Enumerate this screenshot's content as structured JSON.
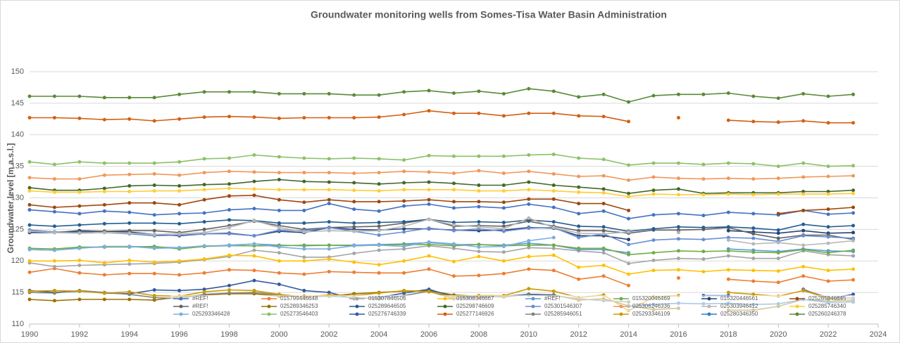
{
  "chart_data": {
    "type": "line",
    "title": "Groundwater monitoring wells from  Somes-Tisa Water Basin Administration",
    "y_label": "Groundwater level [m a.s.l.]",
    "x": [
      1990,
      1991,
      1992,
      1993,
      1994,
      1995,
      1996,
      1997,
      1998,
      1999,
      2000,
      2001,
      2002,
      2003,
      2004,
      2005,
      2006,
      2007,
      2008,
      2009,
      2010,
      2011,
      2012,
      2013,
      2014,
      2015,
      2016,
      2017,
      2018,
      2019,
      2020,
      2021,
      2022,
      2023
    ],
    "xlim": [
      1990,
      2024
    ],
    "xticks": [
      1990,
      1992,
      1994,
      1996,
      1998,
      2000,
      2002,
      2004,
      2006,
      2008,
      2010,
      2012,
      2014,
      2016,
      2018,
      2020,
      2022,
      2024
    ],
    "ylim": [
      110,
      150
    ],
    "yticks": [
      110,
      115,
      120,
      125,
      130,
      135,
      140,
      145,
      150
    ],
    "grid": true,
    "legend": "bottom",
    "series": [
      {
        "name": "#REF!",
        "color": "#4472c4",
        "values": [
          128.1,
          127.8,
          127.5,
          127.9,
          127.7,
          127.3,
          127.5,
          127.6,
          128.1,
          128.3,
          128.0,
          128.0,
          129.1,
          128.2,
          127.9,
          128.7,
          129.0,
          128.4,
          128.6,
          128.4,
          129.0,
          128.5,
          127.5,
          127.9,
          126.7,
          127.3,
          127.5,
          127.2,
          127.7,
          127.5,
          127.3,
          128.0,
          127.4,
          127.6
        ]
      },
      {
        "name": "015799446648",
        "color": "#ed7d31",
        "values": [
          118.2,
          118.8,
          118.1,
          117.8,
          118.0,
          118.0,
          117.8,
          118.1,
          118.6,
          118.5,
          118.1,
          117.9,
          118.3,
          118.2,
          118.1,
          118.1,
          118.7,
          117.6,
          117.7,
          118.0,
          118.7,
          118.5,
          117.1,
          117.6,
          116.1,
          null,
          117.3,
          null,
          117.1,
          116.8,
          116.6,
          117.6,
          116.8,
          117.0
        ]
      },
      {
        "name": "015307846506",
        "color": "#a5a5a5",
        "values": [
          119.7,
          119.1,
          119.3,
          119.4,
          119.5,
          119.6,
          119.8,
          120.2,
          120.7,
          121.7,
          121.3,
          120.6,
          120.6,
          121.2,
          121.7,
          121.9,
          122.4,
          122.0,
          121.5,
          121.4,
          122.1,
          122.0,
          121.6,
          121.3,
          119.6,
          120.1,
          120.4,
          120.3,
          120.8,
          120.4,
          120.4,
          121.6,
          121.0,
          120.8
        ]
      },
      {
        "name": "015308346667",
        "color": "#ffc000",
        "values": [
          120.0,
          120.0,
          120.1,
          119.7,
          120.1,
          119.8,
          120.0,
          120.3,
          120.9,
          120.8,
          120.0,
          120.0,
          120.3,
          119.8,
          119.4,
          120.0,
          120.8,
          119.9,
          120.7,
          120.0,
          120.7,
          120.9,
          119.0,
          119.3,
          117.9,
          118.5,
          118.6,
          118.3,
          118.6,
          118.5,
          118.4,
          119.1,
          118.5,
          118.7
        ]
      },
      {
        "name": "#REF!",
        "color": "#5b9bd5",
        "values": [
          121.8,
          121.7,
          122.1,
          122.2,
          122.3,
          122.2,
          122.1,
          122.3,
          122.5,
          122.7,
          122.5,
          122.4,
          122.5,
          122.5,
          122.6,
          122.7,
          122.9,
          122.6,
          122.6,
          122.5,
          122.8,
          122.5,
          121.8,
          121.8,
          121.3,
          null,
          null,
          null,
          121.9,
          121.7,
          121.5,
          121.9,
          121.6,
          121.5
        ]
      },
      {
        "name": "015320046469",
        "color": "#70ad47",
        "values": [
          122.0,
          121.9,
          122.2,
          122.2,
          122.2,
          122.3,
          121.9,
          122.3,
          122.4,
          122.4,
          122.4,
          122.5,
          122.5,
          122.4,
          122.5,
          122.6,
          122.6,
          122.4,
          122.6,
          122.4,
          122.5,
          122.5,
          122.0,
          122.0,
          121.0,
          121.3,
          121.6,
          121.5,
          121.6,
          121.4,
          121.3,
          121.8,
          121.3,
          121.7
        ]
      },
      {
        "name": "015320446561",
        "color": "#264478",
        "values": [
          124.5,
          124.5,
          124.8,
          124.7,
          124.6,
          124.2,
          124.0,
          124.3,
          124.4,
          124.0,
          124.7,
          124.5,
          125.3,
          125.0,
          124.9,
          125.1,
          125.1,
          124.9,
          124.8,
          124.9,
          125.3,
          125.2,
          124.0,
          124.0,
          123.4,
          null,
          124.6,
          null,
          124.8,
          124.6,
          124.4,
          124.8,
          124.4,
          124.5
        ]
      },
      {
        "name": "025285846645",
        "color": "#9e480e",
        "values": [
          128.9,
          128.5,
          128.7,
          128.9,
          129.2,
          129.2,
          128.9,
          129.7,
          130.3,
          130.4,
          129.7,
          129.3,
          129.7,
          129.4,
          129.4,
          129.5,
          129.7,
          129.4,
          129.4,
          129.3,
          129.8,
          129.8,
          129.1,
          129.1,
          128.0,
          null,
          null,
          null,
          null,
          null,
          127.5,
          128.0,
          128.2,
          128.5
        ]
      },
      {
        "name": "#REF!",
        "color": "#636363",
        "values": [
          124.9,
          124.6,
          124.6,
          124.7,
          124.8,
          124.8,
          124.5,
          125.0,
          125.6,
          126.3,
          125.6,
          125.0,
          125.3,
          125.4,
          125.5,
          126.0,
          126.6,
          125.5,
          125.6,
          125.5,
          126.3,
          125.5,
          124.8,
          124.8,
          124.4,
          124.9,
          124.9,
          125.0,
          125.3,
          124.3,
          123.6,
          124.1,
          124.1,
          123.4
        ]
      },
      {
        "name": "025289346253",
        "color": "#997300",
        "values": [
          113.9,
          113.7,
          113.9,
          113.9,
          113.9,
          113.8,
          114.3,
          114.6,
          114.8,
          114.8,
          114.4,
          114.4,
          114.4,
          114.8,
          115.0,
          115.2,
          115.3,
          114.6,
          114.4,
          114.3,
          114.7,
          114.6,
          113.8,
          114.0,
          112.9,
          112.3,
          112.5,
          null,
          112.2,
          112.2,
          112.8,
          113.9,
          113.6,
          113.8
        ]
      },
      {
        "name": "025289646505",
        "color": "#255e91",
        "values": [
          125.7,
          125.5,
          125.7,
          125.9,
          126.0,
          126.0,
          125.9,
          126.2,
          126.5,
          126.4,
          126.0,
          126.0,
          126.2,
          126.0,
          126.1,
          126.2,
          126.6,
          126.1,
          126.2,
          126.1,
          126.5,
          126.2,
          125.5,
          125.4,
          124.7,
          125.1,
          125.4,
          125.3,
          125.4,
          125.2,
          124.9,
          125.8,
          125.4,
          125.6
        ]
      },
      {
        "name": "025298746609",
        "color": "#43682b",
        "values": [
          131.6,
          131.2,
          131.2,
          131.5,
          131.9,
          132.0,
          131.9,
          132.1,
          132.2,
          132.6,
          132.9,
          132.6,
          132.5,
          132.4,
          132.2,
          132.4,
          132.5,
          132.3,
          132.0,
          132.0,
          132.5,
          132.0,
          131.7,
          131.4,
          130.7,
          131.2,
          131.4,
          130.7,
          130.8,
          130.8,
          130.8,
          131.0,
          131.0,
          131.2
        ]
      },
      {
        "name": "025301546307",
        "color": "#698ed0",
        "values": [
          124.9,
          124.6,
          124.4,
          124.5,
          124.3,
          124.0,
          124.1,
          124.3,
          124.3,
          124.0,
          124.9,
          124.8,
          125.3,
          124.7,
          124.1,
          124.6,
          125.2,
          124.8,
          125.1,
          124.7,
          125.2,
          125.3,
          123.7,
          124.3,
          122.6,
          123.3,
          123.5,
          123.4,
          123.7,
          123.6,
          123.1,
          124.0,
          123.8,
          123.6
        ]
      },
      {
        "name": "025306246336",
        "color": "#f1975a",
        "values": [
          133.2,
          133.0,
          133.0,
          133.6,
          133.7,
          133.8,
          133.6,
          134.0,
          134.2,
          134.1,
          134.0,
          134.0,
          134.0,
          133.9,
          134.0,
          134.2,
          134.1,
          133.9,
          134.3,
          133.9,
          134.2,
          133.8,
          133.4,
          133.5,
          132.8,
          133.3,
          133.1,
          133.0,
          133.1,
          133.0,
          133.1,
          133.3,
          133.4,
          133.5
        ]
      },
      {
        "name": "025303946412",
        "color": "#b7b7b7",
        "values": [
          124.7,
          124.5,
          124.4,
          124.5,
          124.4,
          124.2,
          124.3,
          124.5,
          125.3,
          126.4,
          125.3,
          124.6,
          124.8,
          124.7,
          124.8,
          125.5,
          126.6,
          125.7,
          125.4,
          125.1,
          126.8,
          125.3,
          124.4,
          124.3,
          124.6,
          null,
          124.5,
          null,
          123.3,
          122.7,
          122.9,
          122.5,
          122.8,
          123.2
        ]
      },
      {
        "name": "025285746340",
        "color": "#ffcd33",
        "values": [
          131.1,
          130.9,
          130.9,
          131.0,
          131.0,
          131.1,
          131.1,
          131.3,
          131.5,
          131.4,
          131.3,
          131.3,
          131.3,
          131.2,
          131.1,
          131.3,
          131.3,
          131.3,
          131.1,
          131.1,
          131.3,
          131.1,
          130.9,
          130.8,
          130.2,
          130.6,
          130.5,
          130.5,
          130.6,
          130.5,
          130.6,
          130.6,
          130.6,
          130.7
        ]
      },
      {
        "name": "025293346428",
        "color": "#7cafdd",
        "values": [
          121.8,
          121.7,
          122.0,
          122.3,
          122.3,
          122.0,
          122.1,
          122.4,
          122.4,
          122.7,
          122.2,
          121.9,
          121.9,
          122.4,
          122.5,
          122.3,
          123.0,
          122.7,
          122.2,
          122.3,
          123.2,
          123.7,
          null,
          null,
          null,
          null,
          null,
          null,
          null,
          null,
          null,
          null,
          null,
          null
        ]
      },
      {
        "name": "025273546403",
        "color": "#8cc168",
        "values": [
          135.7,
          135.3,
          135.7,
          135.5,
          135.5,
          135.5,
          135.7,
          136.2,
          136.3,
          136.8,
          136.5,
          136.3,
          136.2,
          136.3,
          136.2,
          136.0,
          136.7,
          136.6,
          136.6,
          136.6,
          136.8,
          136.9,
          136.3,
          136.1,
          135.2,
          135.5,
          135.5,
          135.3,
          135.5,
          135.4,
          135.0,
          135.5,
          135.0,
          135.1
        ]
      },
      {
        "name": "025276746339",
        "color": "#335aa1",
        "values": [
          115.3,
          115.0,
          115.2,
          114.9,
          114.8,
          115.4,
          115.3,
          115.5,
          116.1,
          116.9,
          116.3,
          115.3,
          115.0,
          114.0,
          114.2,
          114.9,
          115.5,
          114.3,
          114.2,
          114.4,
          114.7,
          114.6,
          null,
          null,
          null,
          null,
          null,
          114.5,
          114.5,
          null,
          null,
          115.5,
          114.0,
          114.7
        ]
      },
      {
        "name": "025277146926",
        "color": "#d26012",
        "values": [
          142.7,
          142.7,
          142.6,
          142.4,
          142.5,
          142.2,
          142.5,
          142.8,
          142.9,
          142.8,
          142.6,
          142.7,
          142.7,
          142.7,
          142.8,
          143.2,
          143.8,
          143.4,
          143.4,
          143.0,
          143.4,
          143.4,
          143.0,
          142.9,
          142.1,
          null,
          142.7,
          null,
          142.3,
          142.1,
          142.0,
          142.2,
          141.9,
          141.9
        ]
      },
      {
        "name": "025285946051",
        "color": "#848484",
        "values": [
          115.0,
          114.9,
          115.3,
          115.0,
          114.7,
          114.2,
          114.0,
          114.7,
          114.9,
          115.0,
          114.6,
          114.3,
          114.4,
          114.2,
          114.0,
          114.5,
          115.2,
          114.0,
          114.2,
          114.4,
          114.6,
          114.5,
          114.0,
          113.7,
          113.5,
          null,
          null,
          null,
          null,
          null,
          null,
          115.4,
          114.2,
          114.1
        ]
      },
      {
        "name": "025293346109",
        "color": "#cc9a00",
        "values": [
          115.2,
          115.3,
          115.2,
          114.9,
          115.1,
          114.5,
          114.4,
          115.1,
          115.4,
          115.3,
          114.7,
          114.3,
          114.6,
          114.5,
          114.9,
          115.3,
          115.1,
          114.3,
          114.5,
          114.5,
          115.6,
          115.2,
          114.2,
          114.6,
          112.1,
          114.3,
          114.5,
          null,
          115.0,
          114.7,
          114.4,
          115.3,
          114.1,
          113.5
        ]
      },
      {
        "name": "025280346350",
        "color": "#327dc2",
        "values": [
          null,
          null,
          null,
          null,
          null,
          null,
          null,
          null,
          null,
          null,
          null,
          null,
          null,
          null,
          null,
          null,
          null,
          null,
          null,
          null,
          null,
          null,
          null,
          null,
          112.8,
          113.1,
          113.3,
          113.2,
          113.3,
          113.1,
          113.2,
          113.9,
          113.4,
          113.5
        ]
      },
      {
        "name": "025260246378",
        "color": "#5a8a39",
        "values": [
          146.1,
          146.1,
          146.1,
          145.9,
          145.9,
          145.9,
          146.4,
          146.8,
          146.8,
          146.8,
          146.5,
          146.5,
          146.5,
          146.3,
          146.3,
          146.8,
          147.0,
          146.6,
          146.9,
          146.5,
          147.3,
          146.9,
          146.0,
          146.4,
          145.2,
          146.2,
          146.4,
          146.4,
          146.6,
          146.1,
          145.8,
          146.5,
          146.1,
          146.4
        ]
      }
    ]
  }
}
